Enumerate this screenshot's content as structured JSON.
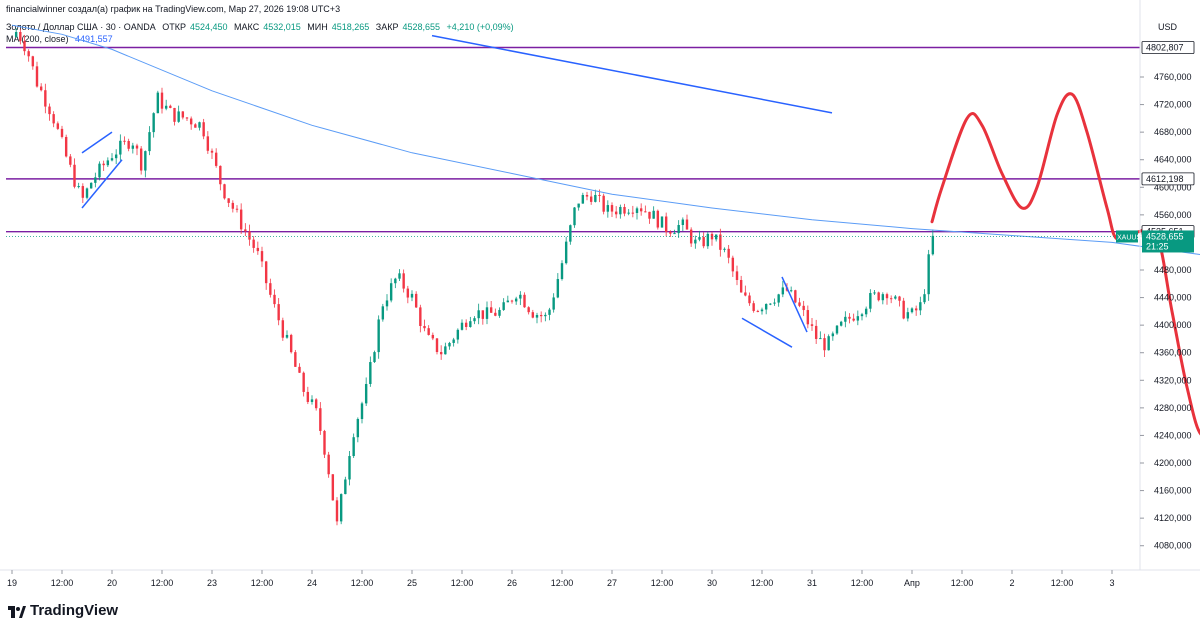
{
  "header": {
    "author_line": "financialwinner создал(а) график на TradingView.com, Мар 27, 2026 19:08 UTC+3",
    "symbol_line": "Золото / Доллар США · 30 · OANDA",
    "open_label": "ОТКР",
    "open_value": "4524,450",
    "high_label": "МАКС",
    "high_value": "4532,015",
    "low_label": "МИН",
    "low_value": "4518,265",
    "close_label": "ЗАКР",
    "close_value": "4528,655",
    "change": "+4,210 (+0,09%)",
    "ma_label": "MA (200, close)",
    "ma_value": "4491,557"
  },
  "colors": {
    "up": "#089981",
    "down": "#f23645",
    "ma": "#5b9cf6",
    "level": "#7b1fa2",
    "trend": "#2962ff",
    "forecast": "#e8323c",
    "price_tag": "#089981"
  },
  "chart_data": {
    "type": "candlestick",
    "symbol": "XAUUSD",
    "timeframe": "30",
    "currency": "USD",
    "x_ticks": [
      "19",
      "12:00",
      "20",
      "12:00",
      "23",
      "12:00",
      "24",
      "12:00",
      "25",
      "12:00",
      "26",
      "12:00",
      "27",
      "12:00",
      "30",
      "12:00",
      "31",
      "12:00",
      "Апр",
      "12:00",
      "2",
      "12:00",
      "3"
    ],
    "y_ticks": [
      "4760,000",
      "4720,000",
      "4680,000",
      "4640,000",
      "4600,000",
      "4560,000",
      "4480,000",
      "4440,000",
      "4400,000",
      "4360,000",
      "4320,000",
      "4280,000",
      "4240,000",
      "4200,000",
      "4160,000",
      "4120,000",
      "4080,000"
    ],
    "ylim": [
      4060,
      4830
    ],
    "levels": [
      {
        "label": "4802,807",
        "value": 4802.807
      },
      {
        "label": "4612,198",
        "value": 4612.198
      },
      {
        "label": "4535,651",
        "value": 4535.651
      }
    ],
    "price_tag": {
      "symbol": "XAUUSD",
      "price": "4528,655",
      "timer": "21:25",
      "value": 4528.655
    },
    "ma200": [
      [
        0,
        4835
      ],
      [
        0.5,
        4822
      ],
      [
        1,
        4800
      ],
      [
        2,
        4740
      ],
      [
        3,
        4690
      ],
      [
        4,
        4650
      ],
      [
        5,
        4620
      ],
      [
        6,
        4590
      ],
      [
        7,
        4570
      ],
      [
        8,
        4553
      ],
      [
        9,
        4540
      ],
      [
        10,
        4530
      ],
      [
        11,
        4520
      ],
      [
        12,
        4500
      ],
      [
        13,
        4492
      ]
    ],
    "close_path": [
      [
        0,
        4818
      ],
      [
        0.05,
        4827
      ],
      [
        0.15,
        4800
      ],
      [
        0.25,
        4752
      ],
      [
        0.4,
        4707
      ],
      [
        0.55,
        4640
      ],
      [
        0.7,
        4580
      ],
      [
        0.8,
        4610
      ],
      [
        1,
        4648
      ],
      [
        1.2,
        4670
      ],
      [
        1.3,
        4632
      ],
      [
        1.45,
        4730
      ],
      [
        1.6,
        4705
      ],
      [
        1.75,
        4700
      ],
      [
        1.9,
        4690
      ],
      [
        2.1,
        4600
      ],
      [
        2.3,
        4545
      ],
      [
        2.45,
        4505
      ],
      [
        2.6,
        4435
      ],
      [
        2.75,
        4375
      ],
      [
        2.9,
        4310
      ],
      [
        3.05,
        4270
      ],
      [
        3.15,
        4205
      ],
      [
        3.25,
        4110
      ],
      [
        3.4,
        4240
      ],
      [
        3.55,
        4310
      ],
      [
        3.7,
        4430
      ],
      [
        3.85,
        4470
      ],
      [
        4,
        4440
      ],
      [
        4.15,
        4380
      ],
      [
        4.3,
        4360
      ],
      [
        4.45,
        4390
      ],
      [
        4.6,
        4420
      ],
      [
        4.75,
        4415
      ],
      [
        4.9,
        4420
      ],
      [
        5.05,
        4450
      ],
      [
        5.2,
        4420
      ],
      [
        5.35,
        4410
      ],
      [
        5.5,
        4490
      ],
      [
        5.65,
        4580
      ],
      [
        5.8,
        4590
      ],
      [
        5.95,
        4565
      ],
      [
        6.1,
        4570
      ],
      [
        6.25,
        4575
      ],
      [
        6.4,
        4560
      ],
      [
        6.55,
        4540
      ],
      [
        6.7,
        4545
      ],
      [
        6.85,
        4515
      ],
      [
        7,
        4530
      ],
      [
        7.15,
        4500
      ],
      [
        7.3,
        4440
      ],
      [
        7.45,
        4425
      ],
      [
        7.6,
        4440
      ],
      [
        7.75,
        4450
      ],
      [
        7.9,
        4420
      ],
      [
        8.05,
        4380
      ],
      [
        8.15,
        4370
      ],
      [
        8.3,
        4400
      ],
      [
        8.45,
        4420
      ],
      [
        8.6,
        4440
      ],
      [
        8.75,
        4450
      ],
      [
        8.9,
        4420
      ],
      [
        9,
        4415
      ],
      [
        9.1,
        4430
      ],
      [
        9.2,
        4525
      ],
      [
        9.25,
        4529
      ]
    ],
    "trendlines": [
      {
        "from": [
          0.7,
          4650
        ],
        "to": [
          1.0,
          4680
        ]
      },
      {
        "from": [
          0.7,
          4570
        ],
        "to": [
          1.1,
          4640
        ]
      },
      {
        "from": [
          4.2,
          4820
        ],
        "to": [
          8.2,
          4708
        ]
      },
      {
        "from": [
          7.3,
          4410
        ],
        "to": [
          7.8,
          4368
        ]
      },
      {
        "from": [
          7.7,
          4470
        ],
        "to": [
          7.95,
          4390
        ]
      }
    ],
    "forecast": [
      [
        9.2,
        4550
      ],
      [
        9.3,
        4600
      ],
      [
        9.55,
        4700
      ],
      [
        9.7,
        4690
      ],
      [
        9.9,
        4620
      ],
      [
        10.1,
        4570
      ],
      [
        10.25,
        4600
      ],
      [
        10.45,
        4705
      ],
      [
        10.6,
        4735
      ],
      [
        10.75,
        4680
      ],
      [
        10.95,
        4570
      ],
      [
        11.05,
        4525
      ],
      [
        11.25,
        4535
      ],
      [
        11.45,
        4530
      ],
      [
        11.6,
        4420
      ],
      [
        11.75,
        4310
      ],
      [
        11.9,
        4240
      ],
      [
        12.1,
        4270
      ],
      [
        12.4,
        4360
      ],
      [
        12.7,
        4450
      ],
      [
        12.95,
        4560
      ],
      [
        13.15,
        4700
      ],
      [
        13.35,
        4830
      ]
    ]
  }
}
